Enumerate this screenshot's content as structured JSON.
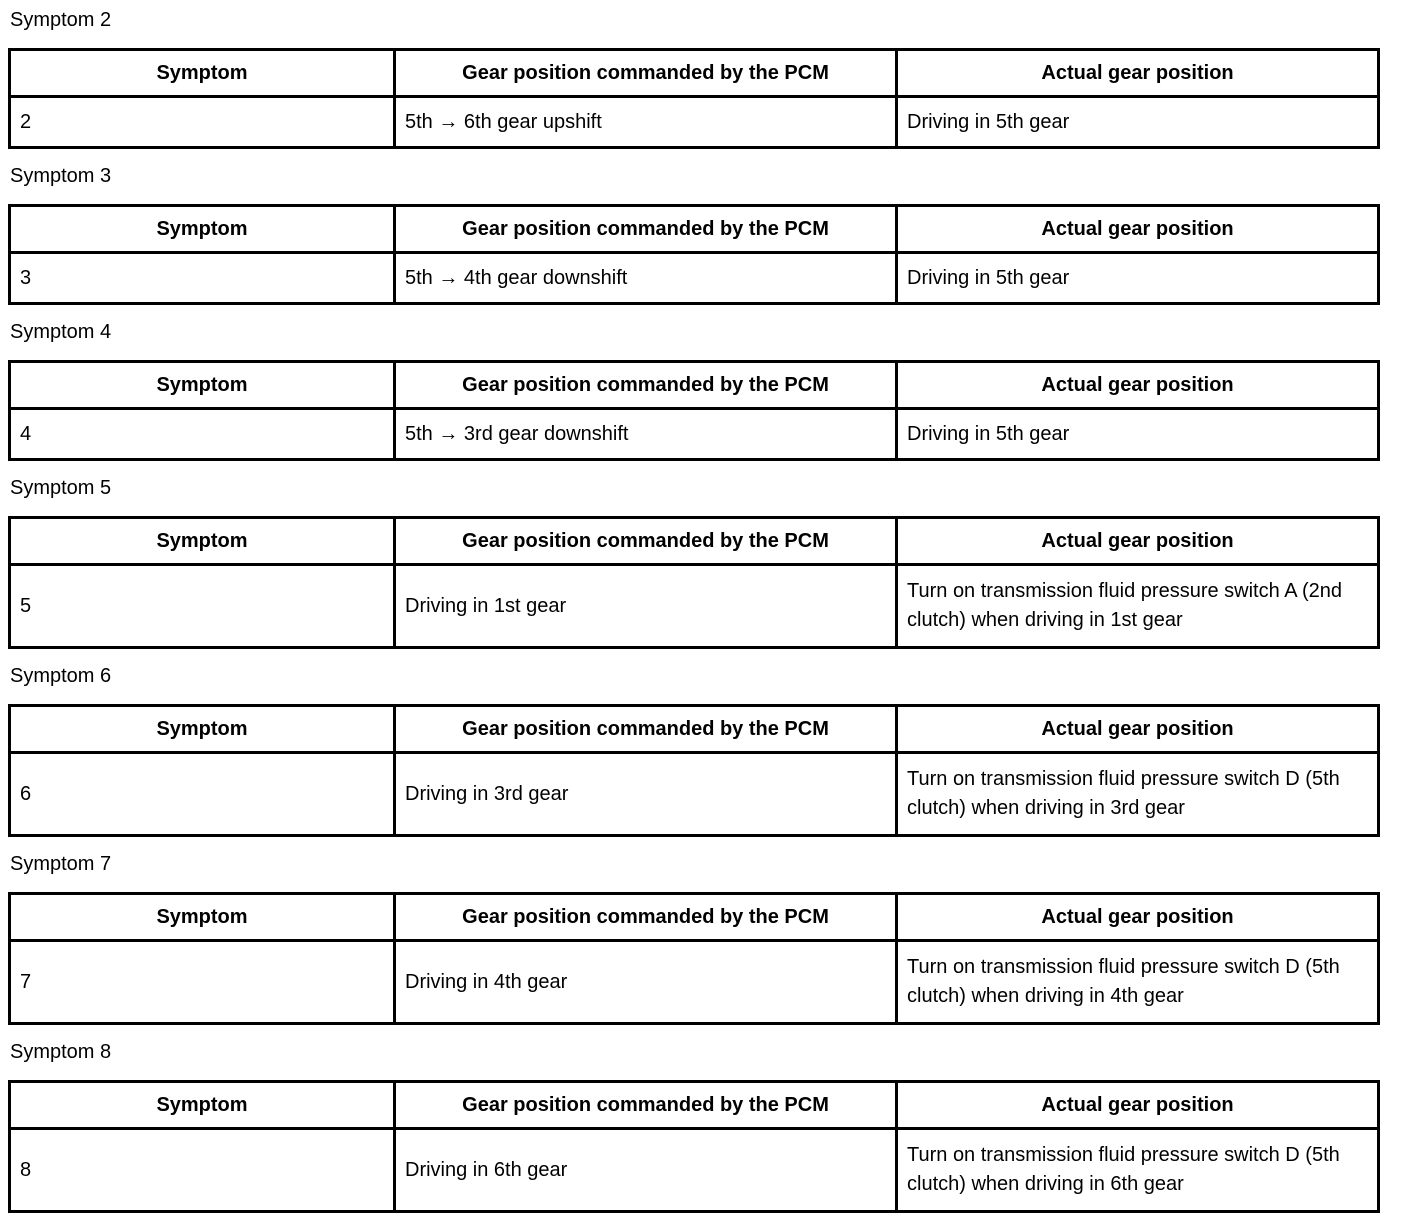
{
  "column_headers": [
    "Symptom",
    "Gear position commanded by the PCM",
    "Actual gear position"
  ],
  "sections": [
    {
      "label": "Symptom 2",
      "row": {
        "symptom": "2",
        "commanded": "5th → 6th gear upshift",
        "actual": "Driving in 5th gear"
      }
    },
    {
      "label": "Symptom 3",
      "row": {
        "symptom": "3",
        "commanded": "5th → 4th gear downshift",
        "actual": "Driving in 5th gear"
      }
    },
    {
      "label": "Symptom 4",
      "row": {
        "symptom": "4",
        "commanded": "5th → 3rd gear downshift",
        "actual": "Driving in 5th gear"
      }
    },
    {
      "label": "Symptom 5",
      "row": {
        "symptom": "5",
        "commanded": "Driving in 1st gear",
        "actual": "Turn on transmission fluid pressure switch A (2nd clutch) when driving in 1st gear"
      }
    },
    {
      "label": "Symptom 6",
      "row": {
        "symptom": "6",
        "commanded": "Driving in 3rd gear",
        "actual": "Turn on transmission fluid pressure switch D (5th clutch) when driving in 3rd gear"
      }
    },
    {
      "label": "Symptom 7",
      "row": {
        "symptom": "7",
        "commanded": "Driving in 4th gear",
        "actual": "Turn on transmission fluid pressure switch D (5th clutch) when driving in 4th gear"
      }
    },
    {
      "label": "Symptom 8",
      "row": {
        "symptom": "8",
        "commanded": "Driving in 6th gear",
        "actual": "Turn on transmission fluid pressure switch D (5th clutch) when driving in 6th gear"
      }
    }
  ]
}
